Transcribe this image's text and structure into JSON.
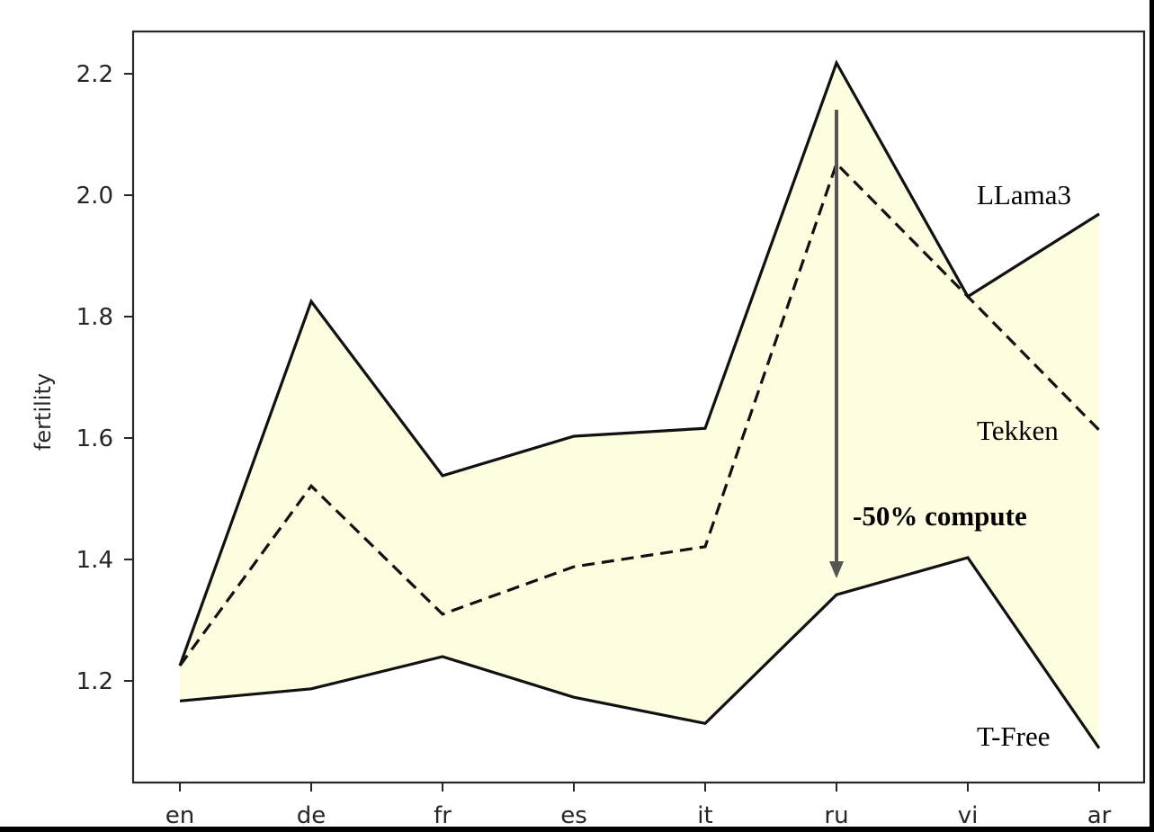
{
  "chart_data": {
    "type": "line",
    "title": "",
    "xlabel": "",
    "ylabel": "fertility",
    "categories": [
      "en",
      "de",
      "fr",
      "es",
      "it",
      "ru",
      "vi",
      "ar"
    ],
    "yticks": [
      "1.2",
      "1.4",
      "1.6",
      "1.8",
      "2.0",
      "2.2"
    ],
    "ylim": [
      1.05,
      2.27
    ],
    "grid": false,
    "legend": "inline labels at right end of series",
    "fill_between": {
      "upper": "LLama3",
      "lower": "T-Free",
      "color": "#fdfde0"
    },
    "series": [
      {
        "name": "LLama3",
        "style": "solid",
        "values": [
          1.225,
          1.825,
          1.538,
          1.603,
          1.616,
          2.218,
          1.833,
          1.969
        ]
      },
      {
        "name": "Tekken",
        "style": "dashed",
        "values": [
          1.225,
          1.521,
          1.31,
          1.388,
          1.421,
          2.052,
          1.833,
          1.613
        ]
      },
      {
        "name": "T-Free",
        "style": "solid",
        "values": [
          1.167,
          1.187,
          1.24,
          1.173,
          1.13,
          1.342,
          1.403,
          1.089
        ]
      }
    ],
    "annotations": [
      {
        "text": "-50% compute",
        "type": "arrow",
        "x": "ru",
        "from_y": 2.14,
        "to_y": 1.37
      }
    ]
  },
  "labels": {
    "ylabel": "fertility",
    "series": {
      "llama3": "LLama3",
      "tekken": "Tekken",
      "tfree": "T-Free"
    },
    "annotation": "-50% compute",
    "xticks": [
      "en",
      "de",
      "fr",
      "es",
      "it",
      "ru",
      "vi",
      "ar"
    ],
    "yticks": [
      "1.2",
      "1.4",
      "1.6",
      "1.8",
      "2.0",
      "2.2"
    ]
  },
  "colors": {
    "fill": "#fdfde0",
    "line": "#111111",
    "arrow": "#555555",
    "axis": "#262626"
  }
}
